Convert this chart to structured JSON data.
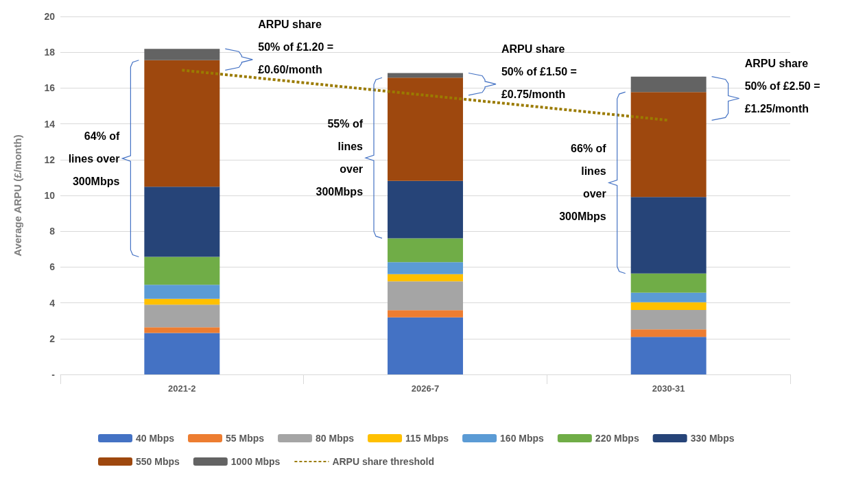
{
  "chart_data": {
    "type": "bar",
    "stacked": true,
    "ylabel": "Average ARPU (£/month)",
    "categories": [
      "2021-2",
      "2026-7",
      "2030-31"
    ],
    "ylim": [
      0,
      20
    ],
    "yticks": [
      {
        "value": 0,
        "label": "-"
      },
      2,
      4,
      6,
      8,
      10,
      12,
      14,
      16,
      18,
      20
    ],
    "grid": "y",
    "legend": "bottom",
    "series": [
      {
        "name": "40 Mbps",
        "color": "#4472c4",
        "values": [
          2.32,
          3.19,
          2.1
        ]
      },
      {
        "name": "55 Mbps",
        "color": "#ed7d31",
        "values": [
          0.31,
          0.4,
          0.42
        ]
      },
      {
        "name": "80 Mbps",
        "color": "#a5a5a5",
        "values": [
          1.27,
          1.61,
          1.08
        ]
      },
      {
        "name": "115 Mbps",
        "color": "#ffc000",
        "values": [
          0.32,
          0.4,
          0.43
        ]
      },
      {
        "name": "160 Mbps",
        "color": "#5b9bd5",
        "values": [
          0.79,
          0.67,
          0.54
        ]
      },
      {
        "name": "220 Mbps",
        "color": "#70ad47",
        "values": [
          1.56,
          1.34,
          1.07
        ]
      },
      {
        "name": "330 Mbps",
        "color": "#264478",
        "values": [
          3.92,
          3.2,
          4.27
        ]
      },
      {
        "name": "550 Mbps",
        "color": "#9e480e",
        "values": [
          7.07,
          5.77,
          5.87
        ]
      },
      {
        "name": "1000 Mbps",
        "color": "#636363",
        "values": [
          0.63,
          0.26,
          0.86
        ]
      },
      {
        "name": "ARPU share threshold",
        "type": "line",
        "line_style": "dashed",
        "color": "#9b7b00",
        "values": [
          17.0,
          15.6,
          14.2
        ]
      }
    ],
    "annotations": [
      "64% of\nlines over\n300Mbps",
      "ARPU share\n50% of £1.20 =\n£0.60/month",
      "55% of\nlines\nover\n300Mbps",
      "ARPU share\n50% of £1.50 =\n£0.75/month",
      "66% of\nlines\nover\n300Mbps",
      "ARPU share\n50% of £2.50 =\n£1.25/month"
    ]
  }
}
